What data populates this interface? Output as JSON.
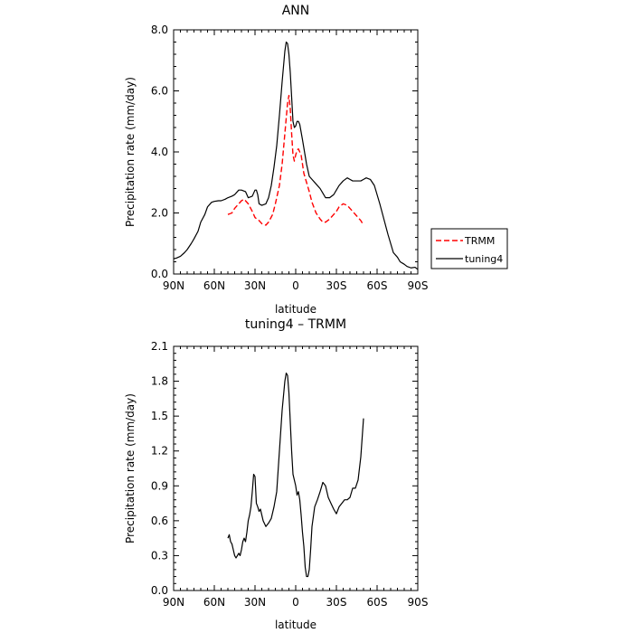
{
  "chart_data": [
    {
      "type": "line",
      "title": "ANN",
      "xlabel": "latitude",
      "ylabel": "Precipitation rate (mm/day)",
      "xlim": [
        90,
        -90
      ],
      "ylim": [
        0,
        8
      ],
      "x_ticks": [
        90,
        60,
        30,
        0,
        -30,
        -60,
        -90
      ],
      "x_tick_labels": [
        "90N",
        "60N",
        "30N",
        "0",
        "30S",
        "60S",
        "90S"
      ],
      "y_ticks": [
        0,
        2,
        4,
        6,
        8
      ],
      "y_tick_labels": [
        "0.0",
        "2.0",
        "4.0",
        "6.0",
        "8.0"
      ],
      "legend_position": "right",
      "series": [
        {
          "name": "TRMM",
          "color": "#ff0000",
          "style": "dashed",
          "x": [
            50,
            47,
            45,
            42,
            40,
            38,
            35,
            32,
            30,
            27,
            25,
            22,
            20,
            17,
            15,
            12,
            10,
            8,
            6,
            5,
            4,
            3,
            2,
            1,
            0,
            -1,
            -2,
            -3,
            -4,
            -5,
            -6,
            -8,
            -10,
            -12,
            -15,
            -18,
            -20,
            -22,
            -25,
            -28,
            -30,
            -32,
            -35,
            -38,
            -40,
            -42,
            -45,
            -48,
            -50
          ],
          "values": [
            1.95,
            2.0,
            2.15,
            2.3,
            2.4,
            2.45,
            2.3,
            2.05,
            1.85,
            1.75,
            1.65,
            1.6,
            1.7,
            1.95,
            2.3,
            2.9,
            3.6,
            4.6,
            5.6,
            5.85,
            5.4,
            4.6,
            3.9,
            3.7,
            3.9,
            4.05,
            4.1,
            4.0,
            3.9,
            3.6,
            3.3,
            3.0,
            2.7,
            2.35,
            2.0,
            1.8,
            1.7,
            1.7,
            1.8,
            1.95,
            2.05,
            2.2,
            2.3,
            2.25,
            2.15,
            2.05,
            1.9,
            1.75,
            1.6
          ]
        },
        {
          "name": "tuning4",
          "color": "#000000",
          "style": "solid",
          "x": [
            90,
            88,
            85,
            82,
            80,
            77,
            75,
            72,
            70,
            67,
            65,
            62,
            60,
            57,
            55,
            52,
            50,
            47,
            45,
            42,
            40,
            37,
            35,
            32,
            30,
            29,
            28,
            27,
            25,
            22,
            20,
            18,
            16,
            14,
            12,
            10,
            8,
            7,
            6,
            5,
            4,
            3,
            2,
            1,
            0,
            -1,
            -2,
            -3,
            -5,
            -8,
            -10,
            -12,
            -15,
            -18,
            -20,
            -22,
            -25,
            -28,
            -30,
            -32,
            -35,
            -38,
            -40,
            -42,
            -45,
            -48,
            -50,
            -52,
            -55,
            -58,
            -60,
            -62,
            -65,
            -68,
            -70,
            -72,
            -75,
            -77,
            -80,
            -82,
            -85,
            -88,
            -90
          ],
          "values": [
            0.5,
            0.52,
            0.58,
            0.7,
            0.8,
            1.0,
            1.15,
            1.4,
            1.7,
            1.95,
            2.2,
            2.35,
            2.38,
            2.4,
            2.4,
            2.45,
            2.5,
            2.55,
            2.6,
            2.75,
            2.75,
            2.7,
            2.5,
            2.55,
            2.75,
            2.75,
            2.6,
            2.3,
            2.25,
            2.3,
            2.5,
            2.9,
            3.5,
            4.2,
            5.2,
            6.3,
            7.3,
            7.6,
            7.55,
            7.2,
            6.6,
            5.8,
            5.0,
            4.8,
            4.85,
            5.0,
            5.0,
            4.9,
            4.4,
            3.6,
            3.2,
            3.1,
            2.95,
            2.8,
            2.65,
            2.5,
            2.5,
            2.6,
            2.75,
            2.9,
            3.05,
            3.15,
            3.1,
            3.05,
            3.05,
            3.05,
            3.1,
            3.15,
            3.1,
            2.9,
            2.6,
            2.3,
            1.8,
            1.3,
            1.0,
            0.7,
            0.55,
            0.4,
            0.32,
            0.25,
            0.2,
            0.22,
            0.15
          ]
        }
      ]
    },
    {
      "type": "line",
      "title": "tuning4 – TRMM",
      "xlabel": "latitude",
      "ylabel": "Precipitation rate (mm/day)",
      "xlim": [
        90,
        -90
      ],
      "ylim": [
        0,
        2.1
      ],
      "x_ticks": [
        90,
        60,
        30,
        0,
        -30,
        -60,
        -90
      ],
      "x_tick_labels": [
        "90N",
        "60N",
        "30N",
        "0",
        "30S",
        "60S",
        "90S"
      ],
      "y_ticks": [
        0,
        0.3,
        0.6,
        0.9,
        1.2,
        1.5,
        1.8,
        2.1
      ],
      "y_tick_labels": [
        "0.0",
        "0.3",
        "0.6",
        "0.9",
        "1.2",
        "1.5",
        "1.8",
        "2.1"
      ],
      "series": [
        {
          "color": "#000000",
          "style": "solid",
          "x": [
            50,
            49,
            48,
            47,
            46,
            45,
            44,
            43,
            42,
            41,
            40,
            39,
            38,
            37,
            36,
            35,
            34,
            33,
            32,
            31,
            30,
            29,
            28,
            27,
            26,
            25,
            24,
            22,
            20,
            18,
            16,
            14,
            12,
            10,
            8,
            7,
            6,
            5,
            4,
            3,
            2,
            1,
            0,
            -1,
            -2,
            -3,
            -4,
            -5,
            -6,
            -7,
            -8,
            -9,
            -10,
            -11,
            -12,
            -14,
            -16,
            -18,
            -20,
            -22,
            -24,
            -26,
            -28,
            -30,
            -32,
            -34,
            -36,
            -38,
            -40,
            -42,
            -44,
            -46,
            -48,
            -50
          ],
          "values": [
            0.45,
            0.48,
            0.42,
            0.4,
            0.35,
            0.3,
            0.28,
            0.3,
            0.32,
            0.3,
            0.35,
            0.42,
            0.45,
            0.42,
            0.5,
            0.6,
            0.65,
            0.72,
            0.85,
            1.0,
            0.98,
            0.75,
            0.72,
            0.68,
            0.7,
            0.65,
            0.6,
            0.55,
            0.58,
            0.62,
            0.72,
            0.85,
            1.2,
            1.55,
            1.8,
            1.87,
            1.85,
            1.7,
            1.45,
            1.2,
            1.0,
            0.95,
            0.9,
            0.82,
            0.85,
            0.78,
            0.65,
            0.5,
            0.38,
            0.2,
            0.12,
            0.12,
            0.18,
            0.35,
            0.55,
            0.72,
            0.78,
            0.85,
            0.93,
            0.9,
            0.8,
            0.75,
            0.7,
            0.66,
            0.72,
            0.75,
            0.78,
            0.78,
            0.8,
            0.88,
            0.88,
            0.95,
            1.15,
            1.48
          ]
        }
      ]
    }
  ],
  "legend": {
    "items": [
      {
        "label": "TRMM",
        "color": "#ff0000",
        "style": "dashed"
      },
      {
        "label": "tuning4",
        "color": "#000000",
        "style": "solid"
      }
    ]
  }
}
